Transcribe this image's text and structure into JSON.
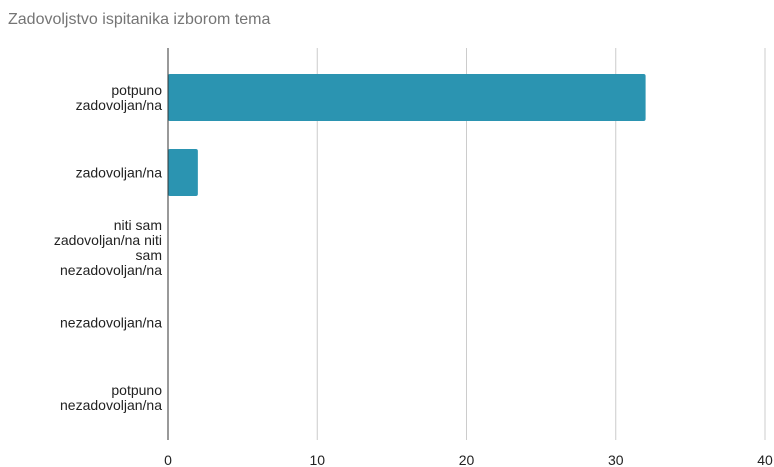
{
  "chart_data": {
    "type": "bar",
    "orientation": "horizontal",
    "title": "Zadovoljstvo ispitanika izborom tema",
    "categories": [
      "potpuno zadovoljan/na",
      "zadovoljan/na",
      "niti sam zadovoljan/na niti sam nezadovoljan/na",
      "nezadovoljan/na",
      "potpuno nezadovoljan/na"
    ],
    "values": [
      32,
      2,
      0,
      0,
      0
    ],
    "color": "#2b94b1",
    "xlim": [
      0,
      40
    ],
    "xticks": [
      0,
      10,
      20,
      30,
      40
    ],
    "grid": true
  }
}
